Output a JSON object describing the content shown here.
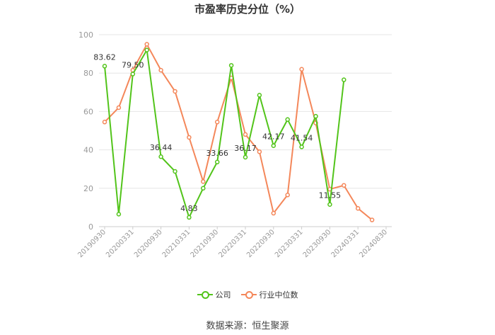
{
  "chart_data": {
    "type": "line",
    "title": "市盈率历史分位（%）",
    "xlabel": "",
    "ylabel": "",
    "ylim": [
      0,
      100
    ],
    "yticks": [
      0,
      20,
      40,
      60,
      80,
      100
    ],
    "x_tick_labels": [
      "20190930",
      "20200331",
      "20200930",
      "20210331",
      "20210930",
      "20220331",
      "20220930",
      "20230331",
      "20230930",
      "20240331",
      "20240830"
    ],
    "x": [
      "20190930",
      "20191231",
      "20200331",
      "20200630",
      "20200930",
      "20201231",
      "20210331",
      "20210630",
      "20210930",
      "20211231",
      "20220331",
      "20220630",
      "20220930",
      "20221231",
      "20230331",
      "20230630",
      "20230930",
      "20231231",
      "20240331",
      "20240630",
      "20240830"
    ],
    "series": [
      {
        "name": "公司",
        "color": "#52c41a",
        "values": [
          83.62,
          6.5,
          79.5,
          92.0,
          36.44,
          28.8,
          4.83,
          20.0,
          33.66,
          84.0,
          36.17,
          68.5,
          42.17,
          55.8,
          41.54,
          57.5,
          11.55,
          76.5,
          null,
          null,
          null
        ],
        "point_labels": {
          "0": "83.62",
          "2": "79.50",
          "4": "36.44",
          "6": "4.83",
          "8": "33.66",
          "10": "36.17",
          "12": "42.17",
          "14": "41.54",
          "16": "11.55"
        }
      },
      {
        "name": "行业中位数",
        "color": "#f4875a",
        "values": [
          54.5,
          62.0,
          81.5,
          95.0,
          81.5,
          70.5,
          46.5,
          23.5,
          54.5,
          77.5,
          48.0,
          39.0,
          7.0,
          16.5,
          82.0,
          54.0,
          19.5,
          21.5,
          9.5,
          3.5,
          null
        ]
      }
    ],
    "grid": true,
    "legend_position": "bottom-center"
  },
  "source": "数据来源：恒生聚源"
}
